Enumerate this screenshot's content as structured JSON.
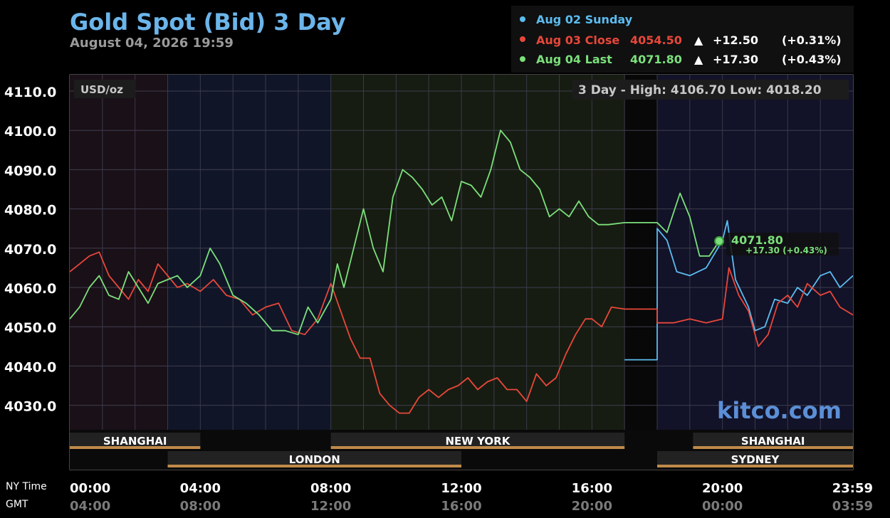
{
  "header": {
    "title": "Gold Spot (Bid) 3 Day",
    "datetime": "August 04, 2026 19:59"
  },
  "legend": {
    "sunday": {
      "label": "Aug 02 Sunday",
      "color": "#5bbcf0"
    },
    "close": {
      "label": "Aug 03 Close",
      "value": "4054.50",
      "arrow": "▲",
      "change": "+12.50",
      "pct": "(+0.31%)",
      "color": "#e8473a"
    },
    "last": {
      "label": "Aug 04 Last",
      "value": "4071.80",
      "arrow": "▲",
      "change": "+17.30",
      "pct": "(+0.43%)",
      "color": "#7be07b"
    }
  },
  "unit": "USD/oz",
  "high_low": "3 Day - High: 4106.70  Low: 4018.20",
  "brand": "kitco.com",
  "current_marker": {
    "value": "4071.80",
    "change": "+17.30 (+0.43%)"
  },
  "axis_labels": {
    "ny_time": "NY Time",
    "gmt": "GMT"
  },
  "sessions": [
    {
      "name": "SHANGHAI",
      "start": 0,
      "end": 4,
      "row": 0
    },
    {
      "name": "NEW YORK",
      "start": 8,
      "end": 17,
      "row": 0
    },
    {
      "name": "SHANGHAI",
      "start": 19.1,
      "end": 24,
      "row": 0
    },
    {
      "name": "LONDON",
      "start": 3,
      "end": 12,
      "row": 1
    },
    {
      "name": "SYDNEY",
      "start": 18,
      "end": 24,
      "row": 1
    }
  ],
  "chart_data": {
    "type": "line",
    "title": "Gold Spot (Bid) 3 Day",
    "ylabel": "USD/oz",
    "ylim": [
      4018.2,
      4106.7
    ],
    "xlim": [
      0,
      24
    ],
    "x_ticks": [
      {
        "hour": 0,
        "ny": "00:00",
        "gmt": "04:00"
      },
      {
        "hour": 4,
        "ny": "04:00",
        "gmt": "08:00"
      },
      {
        "hour": 8,
        "ny": "08:00",
        "gmt": "12:00"
      },
      {
        "hour": 12,
        "ny": "12:00",
        "gmt": "16:00"
      },
      {
        "hour": 16,
        "ny": "16:00",
        "gmt": "20:00"
      },
      {
        "hour": 20,
        "ny": "20:00",
        "gmt": "00:00"
      },
      {
        "hour": 24,
        "ny": "23:59",
        "gmt": "03:59"
      }
    ],
    "y_ticks": [
      4110.0,
      4100.0,
      4090.0,
      4080.0,
      4070.0,
      4060.0,
      4050.0,
      4040.0,
      4030.0
    ],
    "series": [
      {
        "name": "Aug 02 Sunday",
        "color": "#5bbcf0",
        "points": [
          [
            17.0,
            4041.6
          ],
          [
            18.0,
            4041.6
          ],
          [
            18.0,
            4075
          ],
          [
            18.3,
            4072
          ],
          [
            18.6,
            4064
          ],
          [
            19.0,
            4063
          ],
          [
            19.5,
            4065
          ],
          [
            20.0,
            4072
          ],
          [
            20.15,
            4077
          ],
          [
            20.4,
            4062
          ],
          [
            20.8,
            4055
          ],
          [
            21.0,
            4049
          ],
          [
            21.3,
            4050
          ],
          [
            21.6,
            4057
          ],
          [
            22.0,
            4056
          ],
          [
            22.3,
            4060
          ],
          [
            22.6,
            4058
          ],
          [
            23.0,
            4063
          ],
          [
            23.3,
            4064
          ],
          [
            23.6,
            4060
          ],
          [
            24.0,
            4063
          ]
        ]
      },
      {
        "name": "Aug 03 Close",
        "color": "#e8473a",
        "points": [
          [
            0,
            4064
          ],
          [
            0.3,
            4066
          ],
          [
            0.6,
            4068
          ],
          [
            0.9,
            4069
          ],
          [
            1.2,
            4063
          ],
          [
            1.5,
            4060
          ],
          [
            1.8,
            4057
          ],
          [
            2.1,
            4062
          ],
          [
            2.4,
            4059
          ],
          [
            2.7,
            4066
          ],
          [
            3.0,
            4063
          ],
          [
            3.3,
            4060
          ],
          [
            3.6,
            4061
          ],
          [
            4.0,
            4059
          ],
          [
            4.4,
            4062
          ],
          [
            4.8,
            4058
          ],
          [
            5.2,
            4057
          ],
          [
            5.6,
            4053
          ],
          [
            6.0,
            4055
          ],
          [
            6.4,
            4056
          ],
          [
            6.8,
            4049
          ],
          [
            7.2,
            4048
          ],
          [
            7.6,
            4052
          ],
          [
            8.0,
            4061
          ],
          [
            8.3,
            4054
          ],
          [
            8.6,
            4047
          ],
          [
            8.9,
            4042
          ],
          [
            9.2,
            4042
          ],
          [
            9.5,
            4033
          ],
          [
            9.8,
            4030
          ],
          [
            10.1,
            4028
          ],
          [
            10.4,
            4028
          ],
          [
            10.7,
            4032
          ],
          [
            11.0,
            4034
          ],
          [
            11.3,
            4032
          ],
          [
            11.6,
            4034
          ],
          [
            11.9,
            4035
          ],
          [
            12.2,
            4037
          ],
          [
            12.5,
            4034
          ],
          [
            12.8,
            4036
          ],
          [
            13.1,
            4037
          ],
          [
            13.4,
            4034
          ],
          [
            13.7,
            4034
          ],
          [
            14.0,
            4031
          ],
          [
            14.3,
            4038
          ],
          [
            14.6,
            4035
          ],
          [
            14.9,
            4037
          ],
          [
            15.2,
            4043
          ],
          [
            15.5,
            4048
          ],
          [
            15.8,
            4052
          ],
          [
            16.0,
            4052
          ],
          [
            16.3,
            4050
          ],
          [
            16.6,
            4055
          ],
          [
            17.0,
            4054.5
          ],
          [
            18.0,
            4054.5
          ],
          [
            18.0,
            4051
          ],
          [
            18.5,
            4051
          ],
          [
            19.0,
            4052
          ],
          [
            19.5,
            4051
          ],
          [
            20.0,
            4052
          ],
          [
            20.2,
            4065
          ],
          [
            20.5,
            4058
          ],
          [
            20.8,
            4054
          ],
          [
            21.1,
            4045
          ],
          [
            21.4,
            4048
          ],
          [
            21.7,
            4056
          ],
          [
            22.0,
            4058
          ],
          [
            22.3,
            4055
          ],
          [
            22.6,
            4061
          ],
          [
            23.0,
            4058
          ],
          [
            23.3,
            4059
          ],
          [
            23.6,
            4055
          ],
          [
            24.0,
            4053
          ]
        ]
      },
      {
        "name": "Aug 04 Last",
        "color": "#7be07b",
        "points": [
          [
            0,
            4052
          ],
          [
            0.3,
            4055
          ],
          [
            0.6,
            4060
          ],
          [
            0.9,
            4063
          ],
          [
            1.2,
            4058
          ],
          [
            1.5,
            4057
          ],
          [
            1.8,
            4064
          ],
          [
            2.1,
            4060
          ],
          [
            2.4,
            4056
          ],
          [
            2.7,
            4061
          ],
          [
            3.0,
            4062
          ],
          [
            3.3,
            4063
          ],
          [
            3.6,
            4060
          ],
          [
            4.0,
            4063
          ],
          [
            4.3,
            4070
          ],
          [
            4.6,
            4066
          ],
          [
            5.0,
            4058
          ],
          [
            5.4,
            4056
          ],
          [
            5.8,
            4053
          ],
          [
            6.2,
            4049
          ],
          [
            6.6,
            4049
          ],
          [
            7.0,
            4048
          ],
          [
            7.3,
            4055
          ],
          [
            7.6,
            4051
          ],
          [
            8.0,
            4057
          ],
          [
            8.2,
            4066
          ],
          [
            8.4,
            4060
          ],
          [
            8.7,
            4070
          ],
          [
            9.0,
            4080
          ],
          [
            9.3,
            4070
          ],
          [
            9.6,
            4064
          ],
          [
            9.9,
            4083
          ],
          [
            10.2,
            4090
          ],
          [
            10.5,
            4088
          ],
          [
            10.8,
            4085
          ],
          [
            11.1,
            4081
          ],
          [
            11.4,
            4083
          ],
          [
            11.7,
            4077
          ],
          [
            12.0,
            4087
          ],
          [
            12.3,
            4086
          ],
          [
            12.6,
            4083
          ],
          [
            12.9,
            4090
          ],
          [
            13.2,
            4100
          ],
          [
            13.5,
            4097
          ],
          [
            13.8,
            4090
          ],
          [
            14.1,
            4088
          ],
          [
            14.4,
            4085
          ],
          [
            14.7,
            4078
          ],
          [
            15.0,
            4080
          ],
          [
            15.3,
            4078
          ],
          [
            15.6,
            4082
          ],
          [
            15.9,
            4078
          ],
          [
            16.2,
            4076
          ],
          [
            16.5,
            4076
          ],
          [
            17.0,
            4076.5
          ],
          [
            18.0,
            4076.5
          ],
          [
            18.3,
            4074
          ],
          [
            18.7,
            4084
          ],
          [
            19.0,
            4078
          ],
          [
            19.3,
            4068
          ],
          [
            19.6,
            4068
          ],
          [
            19.9,
            4071.8
          ]
        ]
      }
    ]
  }
}
